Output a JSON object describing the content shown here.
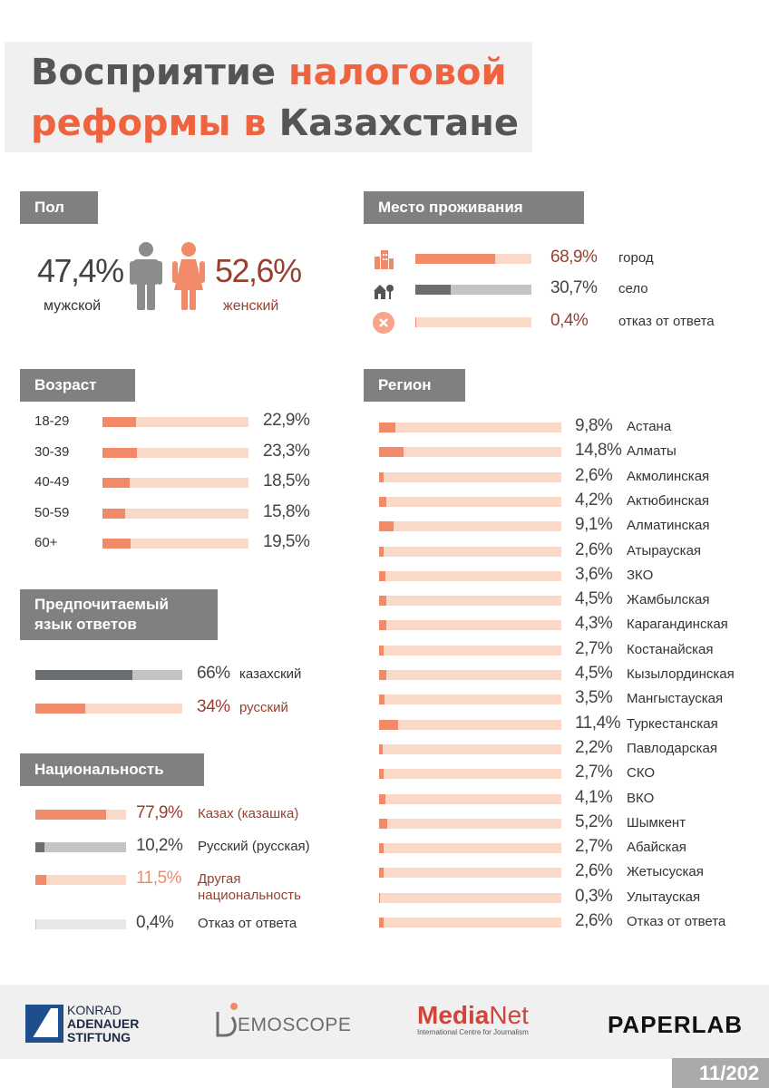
{
  "title": {
    "line1_normal": "Восприятие ",
    "line1_accent": "налоговой",
    "line2_accent": "реформы в",
    "line2_normal": " Казахстане"
  },
  "colors": {
    "accent": "#ee6440",
    "bar_fill": "#f08a68",
    "bar_track": "#fbd9c8",
    "gray_fill": "#6b6e71",
    "gray_track": "#c2c4c6",
    "dark_red": "#973f31",
    "header_bg": "#808080"
  },
  "gender": {
    "header": "Пол",
    "male": {
      "value": "47,4%",
      "label": "мужской",
      "icon": "male-person-icon"
    },
    "female": {
      "value": "52,6%",
      "label": "женский",
      "icon": "female-person-icon"
    }
  },
  "residence": {
    "header": "Место проживания",
    "items": [
      {
        "icon": "city-icon",
        "value": "68,9%",
        "label": "город",
        "percent": 68.9
      },
      {
        "icon": "village-icon",
        "value": "30,7%",
        "label": "село",
        "percent": 30.7
      },
      {
        "icon": "close-circle-icon",
        "value": "0,4%",
        "label": "отказ от ответа",
        "percent": 0.4
      }
    ]
  },
  "age": {
    "header": "Возраст",
    "items": [
      {
        "label": "18-29",
        "value": "22,9%",
        "percent": 22.9
      },
      {
        "label": "30-39",
        "value": "23,3%",
        "percent": 23.3
      },
      {
        "label": "40-49",
        "value": "18,5%",
        "percent": 18.5
      },
      {
        "label": "50-59",
        "value": "15,8%",
        "percent": 15.8
      },
      {
        "label": "60+",
        "value": "19,5%",
        "percent": 19.5
      }
    ]
  },
  "language": {
    "header_line1": "Предпочитаемый",
    "header_line2": "язык ответов",
    "items": [
      {
        "value": "66%",
        "label": "казахский",
        "percent": 66
      },
      {
        "value": "34%",
        "label": "русский",
        "percent": 34
      }
    ]
  },
  "nationality": {
    "header": "Национальность",
    "items": [
      {
        "value": "77,9%",
        "label": "Казах (казашка)",
        "percent": 77.9
      },
      {
        "value": "10,2%",
        "label": "Русский (русская)",
        "percent": 10.2
      },
      {
        "value": "11,5%",
        "label_line1": "Другая",
        "label_line2": "национальность",
        "percent": 11.5
      },
      {
        "value": "0,4%",
        "label": "Отказ от ответа",
        "percent": 0.4
      }
    ]
  },
  "region": {
    "header": "Регион",
    "items": [
      {
        "value": "9,8%",
        "label": "Астана",
        "percent": 9.8
      },
      {
        "value": "14,8%",
        "label": "Алматы",
        "percent": 14.8
      },
      {
        "value": "2,6%",
        "label": "Акмолинская",
        "percent": 2.6
      },
      {
        "value": "4,2%",
        "label": "Актюбинская",
        "percent": 4.2
      },
      {
        "value": "9,1%",
        "label": "Алматинская",
        "percent": 9.1
      },
      {
        "value": "2,6%",
        "label": "Атырауская",
        "percent": 2.6
      },
      {
        "value": "3,6%",
        "label": "ЗКО",
        "percent": 3.6
      },
      {
        "value": "4,5%",
        "label": "Жамбылская",
        "percent": 4.5
      },
      {
        "value": "4,3%",
        "label": "Карагандинская",
        "percent": 4.3
      },
      {
        "value": "2,7%",
        "label": "Костанайская",
        "percent": 2.7
      },
      {
        "value": "4,5%",
        "label": "Кызылординская",
        "percent": 4.5
      },
      {
        "value": "3,5%",
        "label": "Мангыстауская",
        "percent": 3.5
      },
      {
        "value": "11,4%",
        "label": "Туркестанская",
        "percent": 11.4
      },
      {
        "value": "2,2%",
        "label": "Павлодарская",
        "percent": 2.2
      },
      {
        "value": "2,7%",
        "label": "СКО",
        "percent": 2.7
      },
      {
        "value": "4,1%",
        "label": "ВКО",
        "percent": 4.1
      },
      {
        "value": "5,2%",
        "label": "Шымкент",
        "percent": 5.2
      },
      {
        "value": "2,7%",
        "label": "Абайская",
        "percent": 2.7
      },
      {
        "value": "2,6%",
        "label": "Жетысуская",
        "percent": 2.6
      },
      {
        "value": "0,3%",
        "label": "Улытауская",
        "percent": 0.3
      },
      {
        "value": "2,6%",
        "label": "Отказ от ответа",
        "percent": 2.6
      }
    ]
  },
  "footer": {
    "logos": {
      "kas_line1": "KONRAD",
      "kas_line2": "ADENAUER",
      "kas_line3": "STIFTUNG",
      "demoscope": "EMOSCOPE",
      "medianet_a": "Media",
      "medianet_b": "Net",
      "medianet_sub": "International Centre for Journalism",
      "paperlab": "PAPERLAB"
    },
    "page": "11/202"
  }
}
